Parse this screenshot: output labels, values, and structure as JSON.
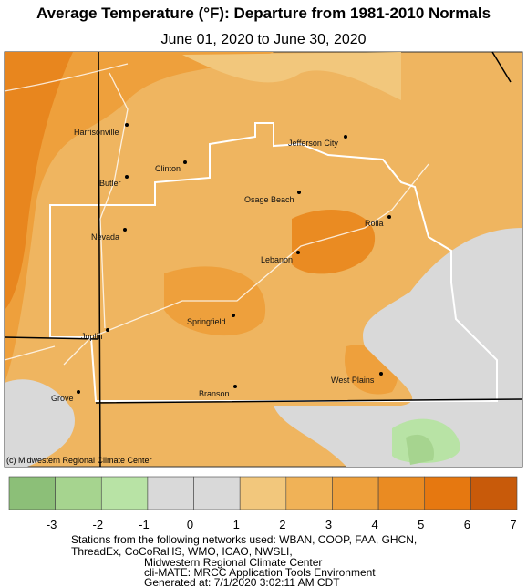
{
  "header": {
    "title": "Average Temperature (°F): Departure from 1981-2010 Normals",
    "subtitle": "June 01, 2020 to June 30, 2020"
  },
  "cities": [
    "Harrisonville",
    "Jefferson City",
    "Clinton",
    "Butler",
    "Osage Beach",
    "Rolla",
    "Nevada",
    "Lebanon",
    "Springfield",
    "Joplin",
    "West Plains",
    "Grove",
    "Branson"
  ],
  "credit": "(c) Midwestern Regional Climate Center",
  "legend": {
    "ticks": [
      -3,
      -2,
      -1,
      0,
      1,
      2,
      3,
      4,
      5,
      6,
      7
    ],
    "colors": [
      "#8cbf78",
      "#a6d48f",
      "#b8e3a5",
      "#d9d9d9",
      "#d9d9d9",
      "#f2c77c",
      "#f0b257",
      "#eea03c",
      "#ea8b22",
      "#e67810",
      "#c85a0a"
    ]
  },
  "footer": [
    "Stations from the following networks used: WBAN, COOP, FAA, GHCN,",
    "ThreadEx, CoCoRaHS, WMO, ICAO, NWSLI,",
    "Midwestern Regional Climate Center",
    "cli-MATE: MRCC Application Tools Environment",
    "Generated at: 7/1/2020 3:02:11 AM CDT"
  ]
}
